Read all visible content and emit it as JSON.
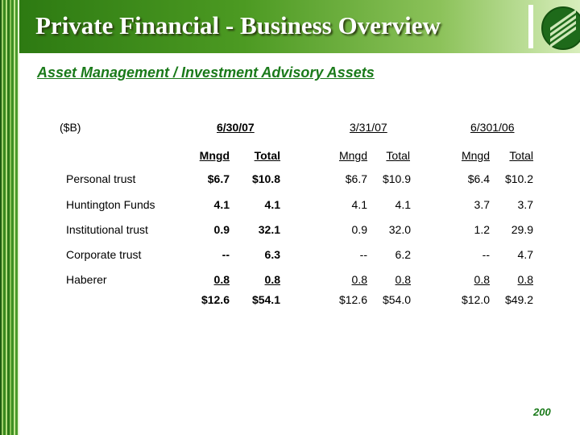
{
  "header": {
    "title": "Private Financial - Business Overview"
  },
  "subtitle": "Asset Management / Investment Advisory Assets",
  "table": {
    "unit": "($B)",
    "periods": [
      {
        "label": "6/30/07",
        "bold": true
      },
      {
        "label": "3/31/07",
        "bold": false
      },
      {
        "label": "6/301/06",
        "bold": false
      }
    ],
    "column_headers": [
      "Mngd",
      "Total"
    ],
    "rows": [
      {
        "label": "Personal trust",
        "values": [
          "$6.7",
          "$10.8",
          "$6.7",
          "$10.9",
          "$6.4",
          "$10.2"
        ]
      },
      {
        "label": "Huntington Funds",
        "values": [
          "4.1",
          "4.1",
          "4.1",
          "4.1",
          "3.7",
          "3.7"
        ]
      },
      {
        "label": "Institutional trust",
        "values": [
          "0.9",
          "32.1",
          "0.9",
          "32.0",
          "1.2",
          "29.9"
        ]
      },
      {
        "label": "Corporate trust",
        "values": [
          "--",
          "6.3",
          "--",
          "6.2",
          "--",
          "4.7"
        ]
      },
      {
        "label": "Haberer",
        "values": [
          "0.8",
          "0.8",
          "0.8",
          "0.8",
          "0.8",
          "0.8"
        ]
      }
    ],
    "totals": [
      "$12.6",
      "$54.1",
      "$12.6",
      "$54.0",
      "$12.0",
      "$49.2"
    ]
  },
  "page_number": "200",
  "colors": {
    "accent_green": "#1a7a1a",
    "header_dark": "#2d7a12",
    "header_light": "#d8eebc"
  }
}
